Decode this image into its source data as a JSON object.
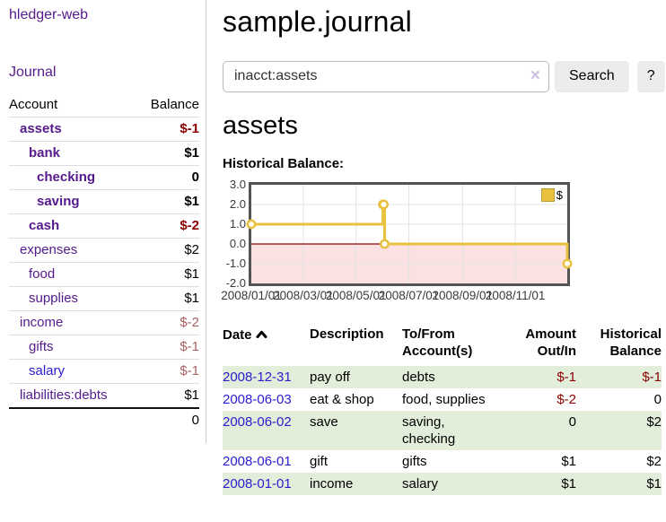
{
  "colors": {
    "link_purple": "#551A8B",
    "link_blue": "#2a1cd0",
    "negative_dark_red": "#8b0000",
    "negative_muted_red": "#aa6161",
    "row_stripe_green": "#e2eeda",
    "chart_line_gold": "#e8c23f",
    "chart_border_gray": "#545454",
    "negative_region_pink": "#fbe1e1",
    "zero_line_red": "#8b0000",
    "button_gray": "#ececec"
  },
  "sidebar": {
    "app_title": "hledger-web",
    "nav": [
      {
        "label": "Journal"
      }
    ],
    "accounts_table": {
      "headers": [
        "Account",
        "Balance"
      ],
      "rows": [
        {
          "name": "assets",
          "depth": 1,
          "bold": true,
          "blue": false,
          "balance": "$-1",
          "balance_style": "neg"
        },
        {
          "name": "bank",
          "depth": 2,
          "bold": true,
          "blue": false,
          "balance": "$1",
          "balance_style": ""
        },
        {
          "name": "checking",
          "depth": 3,
          "bold": true,
          "blue": false,
          "balance": "0",
          "balance_style": ""
        },
        {
          "name": "saving",
          "depth": 3,
          "bold": true,
          "blue": false,
          "balance": "$1",
          "balance_style": ""
        },
        {
          "name": "cash",
          "depth": 2,
          "bold": true,
          "blue": false,
          "balance": "$-2",
          "balance_style": "neg"
        },
        {
          "name": "expenses",
          "depth": 1,
          "bold": false,
          "blue": false,
          "balance": "$2",
          "balance_style": ""
        },
        {
          "name": "food",
          "depth": 2,
          "bold": false,
          "blue": false,
          "balance": "$1",
          "balance_style": ""
        },
        {
          "name": "supplies",
          "depth": 2,
          "bold": false,
          "blue": false,
          "balance": "$1",
          "balance_style": ""
        },
        {
          "name": "income",
          "depth": 1,
          "bold": false,
          "blue": false,
          "balance": "$-2",
          "balance_style": "neg-muted"
        },
        {
          "name": "gifts",
          "depth": 2,
          "bold": false,
          "blue": false,
          "balance": "$-1",
          "balance_style": "neg-muted"
        },
        {
          "name": "salary",
          "depth": 2,
          "bold": false,
          "blue": true,
          "balance": "$-1",
          "balance_style": "neg-muted"
        },
        {
          "name": "liabilities:debts",
          "depth": 1,
          "bold": false,
          "blue": false,
          "balance": "$1",
          "balance_style": ""
        }
      ],
      "total": "0"
    }
  },
  "header": {
    "title": "sample.journal"
  },
  "search": {
    "value": "inacct:assets",
    "clear_icon": "×",
    "button_label": "Search",
    "help_label": "?"
  },
  "account_page": {
    "title": "assets",
    "chart_title": "Historical Balance:"
  },
  "chart_data": {
    "type": "line",
    "style": "steps",
    "title": "Historical Balance",
    "series": [
      {
        "name": "$",
        "color": "#e8c23f",
        "points": [
          [
            "2008-01-01",
            1
          ],
          [
            "2008-06-01",
            2
          ],
          [
            "2008-06-02",
            2
          ],
          [
            "2008-06-03",
            0
          ],
          [
            "2008-12-31",
            -1
          ]
        ]
      }
    ],
    "xlim_dates": [
      "2008-01-01",
      "2008-12-31"
    ],
    "ylim": [
      -2,
      3
    ],
    "y_ticks": [
      "3.0",
      "2.0",
      "1.0",
      "0.0",
      "-1.0",
      "-2.0"
    ],
    "y_tick_values": [
      3,
      2,
      1,
      0,
      -1,
      -2
    ],
    "x_ticks": [
      "2008/01/01",
      "2008/03/01",
      "2008/05/01",
      "2008/07/01",
      "2008/09/01",
      "2008/11/01"
    ],
    "grid": true,
    "legend": {
      "label": "$",
      "position": "top-right"
    },
    "negative_region_color": "#fbe1e1",
    "zero_line_color": "#8b0000",
    "grid_color": "#e3e3e3"
  },
  "register_table": {
    "headers": [
      "Date",
      "Description",
      "To/From Account(s)",
      "Amount Out/In",
      "Historical Balance"
    ],
    "sort_icon": "chevron-up",
    "rows": [
      {
        "date": "2008-12-31",
        "description": "pay off",
        "accounts": "debts",
        "amount": "$-1",
        "amount_negative": true,
        "balance": "$-1",
        "balance_negative": true
      },
      {
        "date": "2008-06-03",
        "description": "eat & shop",
        "accounts": "food, supplies",
        "amount": "$-2",
        "amount_negative": true,
        "balance": "0",
        "balance_negative": false
      },
      {
        "date": "2008-06-02",
        "description": "save",
        "accounts": "saving, checking",
        "amount": "0",
        "amount_negative": false,
        "balance": "$2",
        "balance_negative": false
      },
      {
        "date": "2008-06-01",
        "description": "gift",
        "accounts": "gifts",
        "amount": "$1",
        "amount_negative": false,
        "balance": "$2",
        "balance_negative": false
      },
      {
        "date": "2008-01-01",
        "description": "income",
        "accounts": "salary",
        "amount": "$1",
        "amount_negative": false,
        "balance": "$1",
        "balance_negative": false
      }
    ]
  }
}
